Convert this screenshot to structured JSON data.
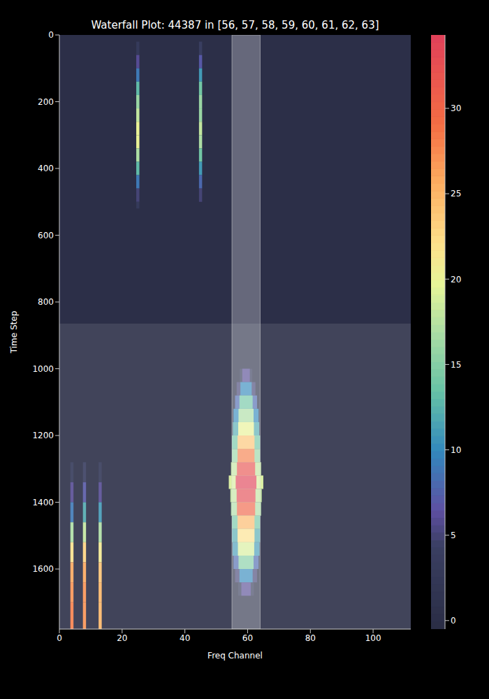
{
  "chart_data": {
    "type": "heatmap",
    "title": "Waterfall Plot: 44387 in [56, 57, 58, 59, 60, 61, 62, 63]",
    "x_label": "Freq Channel",
    "y_label": "Time Step",
    "xlim": [
      0,
      112
    ],
    "xticks": [
      0,
      20,
      40,
      60,
      80,
      100
    ],
    "ylim": [
      1780,
      0
    ],
    "yticks": [
      0,
      200,
      400,
      600,
      800,
      1000,
      1200,
      1400,
      1600
    ],
    "colorbar": {
      "range": [
        -0.5,
        34.3
      ],
      "ticks": [
        0,
        5,
        10,
        15,
        20,
        25,
        30
      ]
    },
    "highlights": {
      "channels": [
        55,
        64
      ],
      "time_steps": [
        865,
        1780
      ]
    },
    "cells": [
      {
        "x": [
          0,
          112
        ],
        "y": [
          0,
          1780
        ],
        "value": 0
      },
      {
        "x": [
          24.5,
          25.5
        ],
        "y": [
          20,
          60
        ],
        "value": 3
      },
      {
        "x": [
          24.5,
          25.5
        ],
        "y": [
          60,
          100
        ],
        "value": 6
      },
      {
        "x": [
          24.5,
          25.5
        ],
        "y": [
          100,
          140
        ],
        "value": 9
      },
      {
        "x": [
          24.5,
          25.5
        ],
        "y": [
          140,
          180
        ],
        "value": 13
      },
      {
        "x": [
          24.5,
          25.5
        ],
        "y": [
          180,
          220
        ],
        "value": 16
      },
      {
        "x": [
          24.5,
          25.5
        ],
        "y": [
          220,
          260
        ],
        "value": 18
      },
      {
        "x": [
          24.5,
          25.5
        ],
        "y": [
          260,
          300
        ],
        "value": 20
      },
      {
        "x": [
          24.5,
          25.5
        ],
        "y": [
          300,
          340
        ],
        "value": 20
      },
      {
        "x": [
          24.5,
          25.5
        ],
        "y": [
          340,
          380
        ],
        "value": 17
      },
      {
        "x": [
          24.5,
          25.5
        ],
        "y": [
          380,
          420
        ],
        "value": 13
      },
      {
        "x": [
          24.5,
          25.5
        ],
        "y": [
          420,
          460
        ],
        "value": 9
      },
      {
        "x": [
          24.5,
          25.5
        ],
        "y": [
          460,
          500
        ],
        "value": 5
      },
      {
        "x": [
          24.5,
          25.5
        ],
        "y": [
          500,
          520
        ],
        "value": 3
      },
      {
        "x": [
          44.5,
          45.5
        ],
        "y": [
          20,
          60
        ],
        "value": 4
      },
      {
        "x": [
          44.5,
          45.5
        ],
        "y": [
          60,
          100
        ],
        "value": 7
      },
      {
        "x": [
          44.5,
          45.5
        ],
        "y": [
          100,
          140
        ],
        "value": 11
      },
      {
        "x": [
          44.5,
          45.5
        ],
        "y": [
          140,
          180
        ],
        "value": 14
      },
      {
        "x": [
          44.5,
          45.5
        ],
        "y": [
          180,
          220
        ],
        "value": 16
      },
      {
        "x": [
          44.5,
          45.5
        ],
        "y": [
          220,
          260
        ],
        "value": 16
      },
      {
        "x": [
          44.5,
          45.5
        ],
        "y": [
          260,
          300
        ],
        "value": 18
      },
      {
        "x": [
          44.5,
          45.5
        ],
        "y": [
          300,
          340
        ],
        "value": 17
      },
      {
        "x": [
          44.5,
          45.5
        ],
        "y": [
          340,
          380
        ],
        "value": 14
      },
      {
        "x": [
          44.5,
          45.5
        ],
        "y": [
          380,
          420
        ],
        "value": 11
      },
      {
        "x": [
          44.5,
          45.5
        ],
        "y": [
          420,
          460
        ],
        "value": 8
      },
      {
        "x": [
          44.5,
          45.5
        ],
        "y": [
          460,
          500
        ],
        "value": 5
      },
      {
        "x": [
          3.5,
          4.5
        ],
        "y": [
          1280,
          1340
        ],
        "value": 3
      },
      {
        "x": [
          3.5,
          4.5
        ],
        "y": [
          1340,
          1400
        ],
        "value": 6
      },
      {
        "x": [
          3.5,
          4.5
        ],
        "y": [
          1400,
          1460
        ],
        "value": 9
      },
      {
        "x": [
          3.5,
          4.5
        ],
        "y": [
          1460,
          1520
        ],
        "value": 17
      },
      {
        "x": [
          3.5,
          4.5
        ],
        "y": [
          1520,
          1580
        ],
        "value": 22
      },
      {
        "x": [
          3.5,
          4.5
        ],
        "y": [
          1580,
          1640
        ],
        "value": 26
      },
      {
        "x": [
          3.5,
          4.5
        ],
        "y": [
          1640,
          1700
        ],
        "value": 27
      },
      {
        "x": [
          3.5,
          4.5
        ],
        "y": [
          1700,
          1780
        ],
        "value": 28
      },
      {
        "x": [
          7.5,
          8.5
        ],
        "y": [
          1280,
          1340
        ],
        "value": 4
      },
      {
        "x": [
          7.5,
          8.5
        ],
        "y": [
          1340,
          1400
        ],
        "value": 7
      },
      {
        "x": [
          7.5,
          8.5
        ],
        "y": [
          1400,
          1460
        ],
        "value": 12
      },
      {
        "x": [
          7.5,
          8.5
        ],
        "y": [
          1460,
          1520
        ],
        "value": 18
      },
      {
        "x": [
          7.5,
          8.5
        ],
        "y": [
          1520,
          1580
        ],
        "value": 23
      },
      {
        "x": [
          7.5,
          8.5
        ],
        "y": [
          1580,
          1640
        ],
        "value": 26
      },
      {
        "x": [
          7.5,
          8.5
        ],
        "y": [
          1640,
          1700
        ],
        "value": 27
      },
      {
        "x": [
          7.5,
          8.5
        ],
        "y": [
          1700,
          1780
        ],
        "value": 27
      },
      {
        "x": [
          12.5,
          13.5
        ],
        "y": [
          1280,
          1340
        ],
        "value": 3
      },
      {
        "x": [
          12.5,
          13.5
        ],
        "y": [
          1340,
          1400
        ],
        "value": 6
      },
      {
        "x": [
          12.5,
          13.5
        ],
        "y": [
          1400,
          1460
        ],
        "value": 11
      },
      {
        "x": [
          12.5,
          13.5
        ],
        "y": [
          1460,
          1520
        ],
        "value": 17
      },
      {
        "x": [
          12.5,
          13.5
        ],
        "y": [
          1520,
          1580
        ],
        "value": 21
      },
      {
        "x": [
          12.5,
          13.5
        ],
        "y": [
          1580,
          1640
        ],
        "value": 24
      },
      {
        "x": [
          12.5,
          13.5
        ],
        "y": [
          1640,
          1700
        ],
        "value": 25
      },
      {
        "x": [
          12.5,
          13.5
        ],
        "y": [
          1700,
          1780
        ],
        "value": 25
      },
      {
        "x": [
          57.5,
          61.5
        ],
        "y": [
          1000,
          1040
        ],
        "value": 3
      },
      {
        "x": [
          56.5,
          62.5
        ],
        "y": [
          1040,
          1080
        ],
        "value": 5
      },
      {
        "x": [
          56,
          63
        ],
        "y": [
          1080,
          1120
        ],
        "value": 8
      },
      {
        "x": [
          55.5,
          63.5
        ],
        "y": [
          1120,
          1160
        ],
        "value": 10
      },
      {
        "x": [
          55.3,
          63.7
        ],
        "y": [
          1160,
          1200
        ],
        "value": 12
      },
      {
        "x": [
          55,
          64
        ],
        "y": [
          1200,
          1240
        ],
        "value": 14
      },
      {
        "x": [
          55,
          64
        ],
        "y": [
          1240,
          1280
        ],
        "value": 16
      },
      {
        "x": [
          54.7,
          64.3
        ],
        "y": [
          1280,
          1320
        ],
        "value": 18
      },
      {
        "x": [
          54,
          65
        ],
        "y": [
          1320,
          1360
        ],
        "value": 19
      },
      {
        "x": [
          54.5,
          64.5
        ],
        "y": [
          1360,
          1400
        ],
        "value": 18
      },
      {
        "x": [
          54.7,
          64.3
        ],
        "y": [
          1400,
          1440
        ],
        "value": 17
      },
      {
        "x": [
          55,
          64
        ],
        "y": [
          1440,
          1480
        ],
        "value": 14
      },
      {
        "x": [
          55,
          64
        ],
        "y": [
          1480,
          1520
        ],
        "value": 12
      },
      {
        "x": [
          55.2,
          63.8
        ],
        "y": [
          1520,
          1560
        ],
        "value": 11
      },
      {
        "x": [
          55.5,
          63.5
        ],
        "y": [
          1560,
          1600
        ],
        "value": 8
      },
      {
        "x": [
          56,
          63
        ],
        "y": [
          1600,
          1640
        ],
        "value": 5
      },
      {
        "x": [
          57,
          62
        ],
        "y": [
          1640,
          1680
        ],
        "value": 3
      },
      {
        "x": [
          58.3,
          60.7
        ],
        "y": [
          1000,
          1040
        ],
        "value": 6
      },
      {
        "x": [
          57.7,
          61.3
        ],
        "y": [
          1040,
          1080
        ],
        "value": 10
      },
      {
        "x": [
          57.4,
          61.6
        ],
        "y": [
          1080,
          1120
        ],
        "value": 14
      },
      {
        "x": [
          57.1,
          61.9
        ],
        "y": [
          1120,
          1160
        ],
        "value": 17
      },
      {
        "x": [
          57,
          62
        ],
        "y": [
          1160,
          1200
        ],
        "value": 20
      },
      {
        "x": [
          56.8,
          62.2
        ],
        "y": [
          1200,
          1240
        ],
        "value": 24
      },
      {
        "x": [
          56.8,
          62.2
        ],
        "y": [
          1240,
          1280
        ],
        "value": 28
      },
      {
        "x": [
          56.6,
          62.4
        ],
        "y": [
          1280,
          1320
        ],
        "value": 32
      },
      {
        "x": [
          56.2,
          62.8
        ],
        "y": [
          1320,
          1360
        ],
        "value": 34
      },
      {
        "x": [
          56.5,
          62.5
        ],
        "y": [
          1360,
          1400
        ],
        "value": 33
      },
      {
        "x": [
          56.6,
          62.4
        ],
        "y": [
          1400,
          1440
        ],
        "value": 30
      },
      {
        "x": [
          56.8,
          62.2
        ],
        "y": [
          1440,
          1480
        ],
        "value": 25
      },
      {
        "x": [
          56.8,
          62.2
        ],
        "y": [
          1480,
          1520
        ],
        "value": 22
      },
      {
        "x": [
          56.9,
          62.1
        ],
        "y": [
          1520,
          1560
        ],
        "value": 19
      },
      {
        "x": [
          57.1,
          61.9
        ],
        "y": [
          1560,
          1600
        ],
        "value": 15
      },
      {
        "x": [
          57.4,
          61.6
        ],
        "y": [
          1600,
          1640
        ],
        "value": 10
      },
      {
        "x": [
          58,
          61
        ],
        "y": [
          1640,
          1680
        ],
        "value": 6
      }
    ]
  }
}
